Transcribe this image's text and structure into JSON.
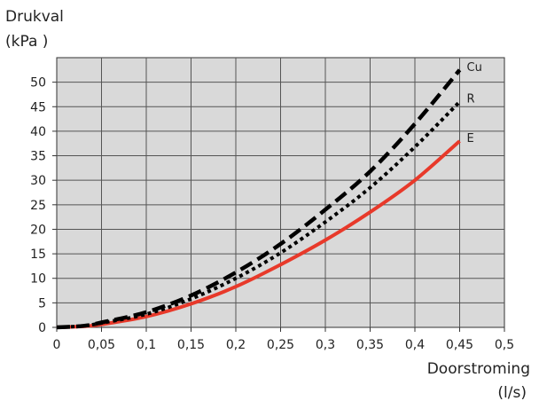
{
  "chart_data": {
    "type": "line",
    "ylabel": "Drukval",
    "ylabel_unit": "(kPa )",
    "xlabel": "Doorstroming",
    "xlabel_unit": "(l/s)",
    "xlim": [
      0,
      0.5
    ],
    "ylim": [
      0,
      55
    ],
    "x_ticks": [
      "0",
      "0,05",
      "0,1",
      "0,15",
      "0,2",
      "0,25",
      "0,3",
      "0,35",
      "0,4",
      "0,45",
      "0,5"
    ],
    "y_ticks": [
      "0",
      "5",
      "10",
      "15",
      "20",
      "25",
      "30",
      "35",
      "40",
      "45",
      "50"
    ],
    "x_tick_values": [
      0,
      0.05,
      0.1,
      0.15,
      0.2,
      0.25,
      0.3,
      0.35,
      0.4,
      0.45,
      0.5
    ],
    "y_tick_values": [
      0,
      5,
      10,
      15,
      20,
      25,
      30,
      35,
      40,
      45,
      50
    ],
    "grid": true,
    "background": "#d9d9d9",
    "series": [
      {
        "name": "Cu",
        "color": "#000000",
        "style": "dashed",
        "x": [
          0,
          0.03,
          0.05,
          0.1,
          0.15,
          0.2,
          0.25,
          0.3,
          0.35,
          0.4,
          0.45
        ],
        "y": [
          0,
          0.3,
          1,
          3.1,
          6.5,
          11.2,
          17,
          24,
          31.8,
          41.5,
          52.5
        ]
      },
      {
        "name": "R",
        "color": "#000000",
        "style": "dotted",
        "x": [
          0,
          0.03,
          0.05,
          0.1,
          0.15,
          0.2,
          0.25,
          0.3,
          0.35,
          0.4,
          0.45
        ],
        "y": [
          0,
          0.3,
          0.9,
          2.7,
          5.8,
          10,
          15.2,
          21.5,
          28.5,
          36.8,
          46
        ]
      },
      {
        "name": "E",
        "color": "#e8392a",
        "style": "solid",
        "x": [
          0,
          0.03,
          0.05,
          0.1,
          0.15,
          0.2,
          0.25,
          0.3,
          0.35,
          0.4,
          0.45
        ],
        "y": [
          0,
          0.2,
          0.6,
          2.2,
          4.8,
          8.3,
          12.8,
          17.8,
          23.5,
          30,
          38
        ]
      }
    ]
  }
}
